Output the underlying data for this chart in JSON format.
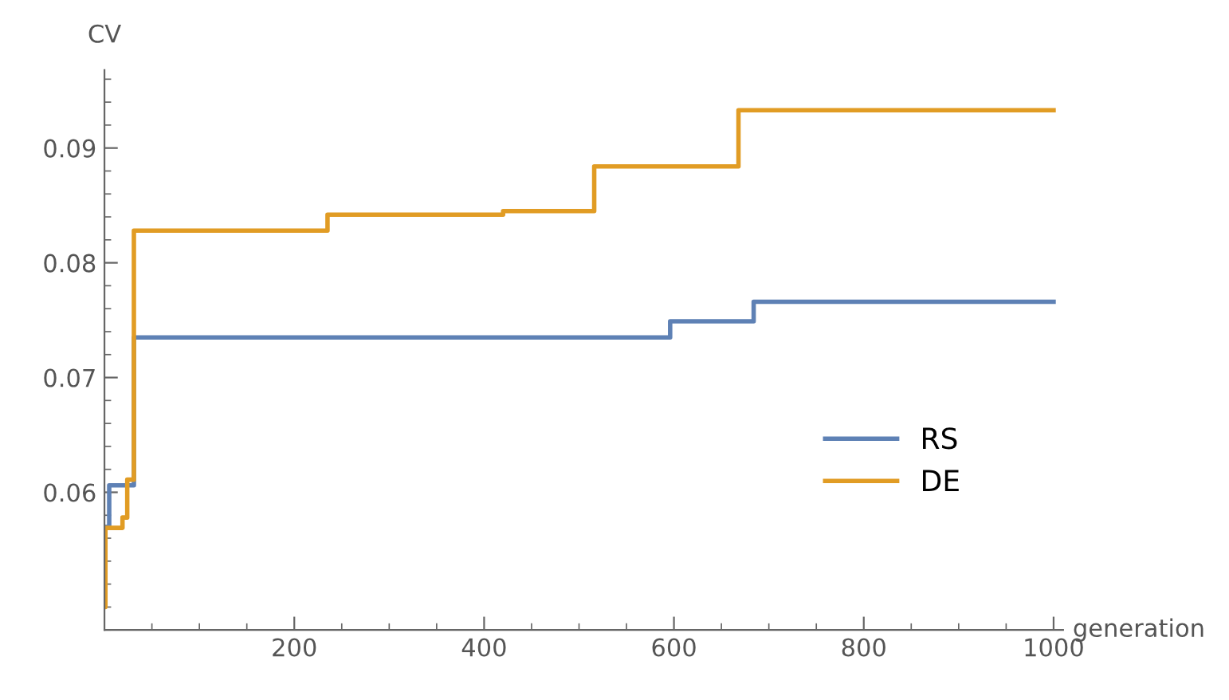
{
  "chart_data": {
    "type": "step",
    "xlabel": "generation",
    "ylabel": "CV",
    "xlim": [
      0,
      1010
    ],
    "ylim": [
      0.048,
      0.0968
    ],
    "xticks": [
      200,
      400,
      600,
      800,
      1000
    ],
    "yticks": [
      0.06,
      0.07,
      0.08,
      0.09
    ],
    "legend": "right",
    "grid": false,
    "series": [
      {
        "name": "RS",
        "color": "#5e81b5",
        "x": [
          0,
          5,
          31,
          596,
          684,
          1000
        ],
        "values": [
          0.057,
          0.0606,
          0.0735,
          0.0749,
          0.0766,
          0.0766
        ]
      },
      {
        "name": "DE",
        "color": "#e19c24",
        "x": [
          0,
          1,
          19,
          24,
          31,
          235,
          420,
          516,
          668,
          1000
        ],
        "values": [
          0.05,
          0.0569,
          0.0578,
          0.0611,
          0.0828,
          0.0842,
          0.0845,
          0.0884,
          0.0933,
          0.0933
        ]
      }
    ]
  }
}
